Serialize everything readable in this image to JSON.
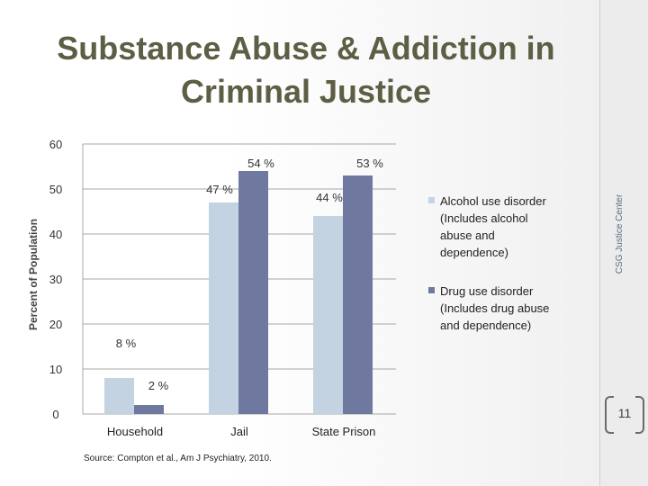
{
  "slide": {
    "title": "Substance Abuse & Addiction in Criminal Justice",
    "side_label": "CSG Justice Center",
    "page_number": "11",
    "source": "Source: Compton et al., Am J Psychiatry, 2010."
  },
  "colors": {
    "alcohol": "#c3d3e1",
    "drug": "#6f79a0",
    "title": "#5e5e45"
  },
  "chart_data": {
    "type": "bar",
    "ylabel": "Percent of Population",
    "xlabel": "",
    "ylim": [
      0,
      60
    ],
    "yticks": [
      "0",
      "10",
      "20",
      "30",
      "40",
      "50",
      "60"
    ],
    "categories": [
      "Household",
      "Jail",
      "State Prison"
    ],
    "series": [
      {
        "name": "Alcohol use disorder\n(Includes alcohol\nabuse and\ndependence)",
        "values": [
          8,
          47,
          44
        ],
        "labels": [
          "8 %",
          "47 %",
          "44 %"
        ]
      },
      {
        "name": "Drug use disorder\n(Includes drug abuse\nand dependence)",
        "values": [
          2,
          54,
          53
        ],
        "labels": [
          "2 %",
          "54 %",
          "53 %"
        ]
      }
    ]
  }
}
